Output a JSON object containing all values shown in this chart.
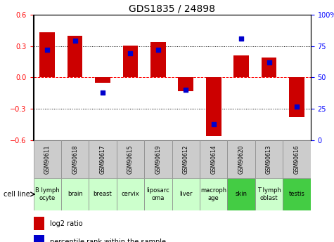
{
  "title": "GDS1835 / 24898",
  "gsm_labels": [
    "GSM90611",
    "GSM90618",
    "GSM90617",
    "GSM90615",
    "GSM90619",
    "GSM90612",
    "GSM90614",
    "GSM90620",
    "GSM90613",
    "GSM90616"
  ],
  "cell_labels": [
    "B lymph\nocyte",
    "brain",
    "breast",
    "cervix",
    "liposarc\noma",
    "liver",
    "macroph\nage",
    "skin",
    "T lymph\noblast",
    "testis"
  ],
  "log2_ratio": [
    0.43,
    0.4,
    -0.05,
    0.305,
    0.335,
    -0.13,
    -0.56,
    0.21,
    0.19,
    -0.38
  ],
  "percentile_rank": [
    72,
    79,
    38,
    69,
    72,
    40,
    13,
    81,
    62,
    27
  ],
  "cell_bg_colors": [
    "#ccffcc",
    "#ccffcc",
    "#ccffcc",
    "#ccffcc",
    "#ccffcc",
    "#ccffcc",
    "#ccffcc",
    "#44cc44",
    "#ccffcc",
    "#44cc44"
  ],
  "gsm_bg_color": "#cccccc",
  "bar_color": "#cc0000",
  "dot_color": "#0000cc",
  "ylim_left": [
    -0.6,
    0.6
  ],
  "ylim_right": [
    0,
    100
  ],
  "yticks_left": [
    -0.6,
    -0.3,
    0,
    0.3,
    0.6
  ],
  "yticks_right": [
    0,
    25,
    50,
    75,
    100
  ],
  "bar_width": 0.55,
  "dot_size": 18,
  "background_color": "#ffffff",
  "title_fontsize": 10,
  "tick_fontsize": 7,
  "gsm_fontsize": 5.5,
  "cell_fontsize": 6.0,
  "legend_fontsize": 7.0
}
